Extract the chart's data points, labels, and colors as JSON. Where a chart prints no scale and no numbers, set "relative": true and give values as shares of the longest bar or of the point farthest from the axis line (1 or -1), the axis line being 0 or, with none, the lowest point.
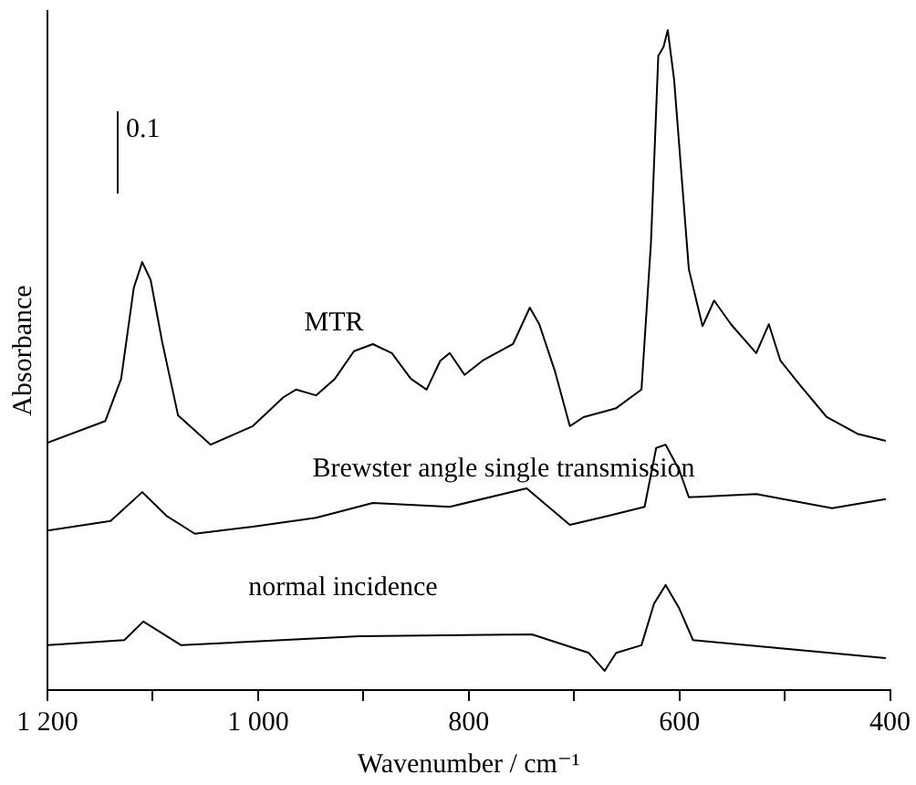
{
  "chart_data": {
    "type": "line",
    "relative": true,
    "xlabel": "Wavenumber / cm⁻¹",
    "ylabel": "Absorbance",
    "xlim": [
      1200,
      400
    ],
    "xticks": [
      {
        "value": 1200,
        "label": "1 200"
      },
      {
        "value": 1100,
        "label": null
      },
      {
        "value": 1000,
        "label": "1 000"
      },
      {
        "value": 900,
        "label": null
      },
      800,
      {
        "value": 700,
        "label": null
      },
      600,
      {
        "value": 500,
        "label": null
      },
      400
    ],
    "marker": "none",
    "line_style": "solid",
    "grid": false,
    "legend": false,
    "series": [
      {
        "color": "#000000",
        "x": [
          1200,
          1145,
          1130,
          1118,
          1110,
          1102,
          1091,
          1076,
          1045,
          1005,
          976,
          964,
          945,
          927,
          909,
          891,
          873,
          855,
          840,
          827,
          818,
          804,
          787,
          758,
          742,
          733,
          718,
          704,
          691,
          660,
          636,
          627,
          620,
          615,
          611,
          605,
          591,
          578,
          567,
          551,
          527,
          515,
          504,
          486,
          460,
          431,
          404
        ],
        "values": [
          0.356,
          0.39,
          0.456,
          0.598,
          0.638,
          0.61,
          0.513,
          0.399,
          0.353,
          0.382,
          0.427,
          0.439,
          0.43,
          0.456,
          0.499,
          0.51,
          0.496,
          0.456,
          0.439,
          0.484,
          0.496,
          0.462,
          0.484,
          0.51,
          0.567,
          0.541,
          0.467,
          0.382,
          0.396,
          0.41,
          0.439,
          0.667,
          0.96,
          0.974,
          1,
          0.923,
          0.627,
          0.538,
          0.578,
          0.541,
          0.496,
          0.541,
          0.484,
          0.447,
          0.396,
          0.37,
          0.359
        ]
      },
      {
        "color": "#000000",
        "x": [
          1200,
          1140,
          1110,
          1087,
          1060,
          1005,
          945,
          891,
          818,
          745,
          704,
          667,
          633,
          622,
          613,
          600,
          591,
          527,
          455,
          404
        ],
        "values": [
          0.219,
          0.234,
          0.279,
          0.242,
          0.214,
          0.225,
          0.239,
          0.262,
          0.256,
          0.285,
          0.228,
          0.242,
          0.256,
          0.348,
          0.353,
          0.313,
          0.271,
          0.276,
          0.254,
          0.268
        ]
      },
      {
        "color": "#000000",
        "x": [
          1200,
          1127,
          1109,
          1073,
          904,
          740,
          686,
          671,
          660,
          636,
          624,
          613,
          600,
          587,
          404
        ],
        "values": [
          0.04,
          0.048,
          0.077,
          0.04,
          0.054,
          0.057,
          0.028,
          0,
          0.028,
          0.04,
          0.105,
          0.134,
          0.097,
          0.048,
          0.02
        ]
      }
    ],
    "annotations": [
      "MTR",
      "Brewster angle single transmission",
      "normal incidence",
      "0.1"
    ]
  }
}
